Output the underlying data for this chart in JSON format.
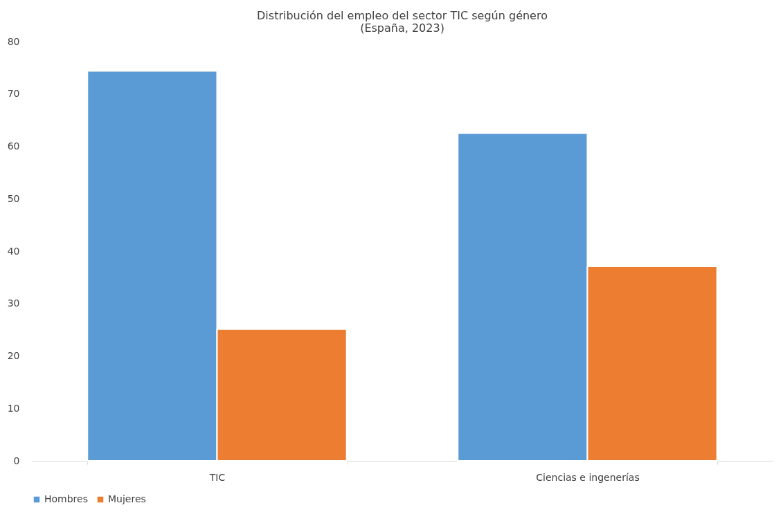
{
  "chart_data": {
    "type": "bar",
    "title": [
      "Distribución del empleo del sector TIC según género",
      "(España, 2023)"
    ],
    "categories": [
      "TIC",
      "Ciencias e ingenerías"
    ],
    "series": [
      {
        "name": "Hombres",
        "color": "#5b9bd5",
        "values": [
          74.4,
          62.5
        ]
      },
      {
        "name": "Mujeres",
        "color": "#ed7d31",
        "values": [
          25.1,
          37.1
        ]
      }
    ],
    "ylim": [
      0,
      80
    ],
    "yticks": [
      0,
      10,
      20,
      30,
      40,
      50,
      60,
      70,
      80
    ],
    "grid": false,
    "legend": "bottom"
  }
}
